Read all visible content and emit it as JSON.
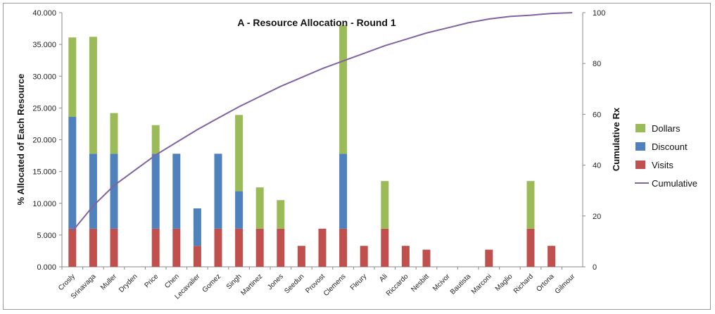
{
  "chart_data": {
    "type": "bar",
    "stacked": true,
    "title": "A - Resource Allocation - Round 1",
    "ylabel": "% Allocated of Each Resource",
    "y2label": "Cumulative Rx",
    "ylim": [
      0,
      40
    ],
    "y2lim": [
      0,
      100
    ],
    "yticks": [
      "0.000",
      "5.000",
      "10.000",
      "15.000",
      "20.000",
      "25.000",
      "30.000",
      "35.000",
      "40.000"
    ],
    "y2ticks": [
      "0",
      "20",
      "40",
      "60",
      "80",
      "100"
    ],
    "grid": false,
    "legend_position": "right",
    "categories": [
      "Crosly",
      "Srinavaga",
      "Muller",
      "Dryden",
      "Price",
      "Chen",
      "Lecavalier",
      "Gomez",
      "Singh",
      "Martinez",
      "Jones",
      "Seedun",
      "Provost",
      "Clemens",
      "Fleury",
      "Ali",
      "Riccardo",
      "Nesbitt",
      "Mcivor",
      "Bautista",
      "Marconi",
      "Maglio",
      "Richard",
      "Ortona",
      "Gilmour"
    ],
    "series": [
      {
        "name": "Visits",
        "color": "#c0504d",
        "values": [
          6.0,
          6.0,
          6.0,
          0,
          6.0,
          6.0,
          3.3,
          6.0,
          6.0,
          6.0,
          6.0,
          3.3,
          6.0,
          6.0,
          3.3,
          6.0,
          3.3,
          2.7,
          0,
          0,
          2.7,
          0,
          6.0,
          3.3,
          0
        ]
      },
      {
        "name": "Discount",
        "color": "#4f81bd",
        "values": [
          17.6,
          11.8,
          11.8,
          0,
          11.8,
          11.8,
          5.9,
          11.8,
          5.9,
          0,
          0,
          0,
          0,
          11.8,
          0,
          0,
          0,
          0,
          0,
          0,
          0,
          0,
          0,
          0,
          0
        ]
      },
      {
        "name": "Dollars",
        "color": "#9bbb59",
        "values": [
          12.5,
          18.4,
          6.4,
          0,
          4.5,
          0,
          0,
          0,
          12.0,
          6.5,
          4.5,
          0,
          0,
          20.2,
          0,
          7.5,
          0,
          0,
          0,
          0,
          0,
          0,
          7.5,
          0,
          0
        ]
      },
      {
        "name": "Cumulative",
        "color": "#8064a2",
        "type": "line",
        "axis": "secondary",
        "values": [
          14,
          24,
          32,
          38,
          44,
          49,
          54,
          58.5,
          63,
          67,
          71,
          74.5,
          78,
          81,
          84,
          87,
          89.5,
          92,
          94,
          96,
          97.5,
          98.5,
          99,
          99.7,
          100
        ]
      }
    ]
  }
}
